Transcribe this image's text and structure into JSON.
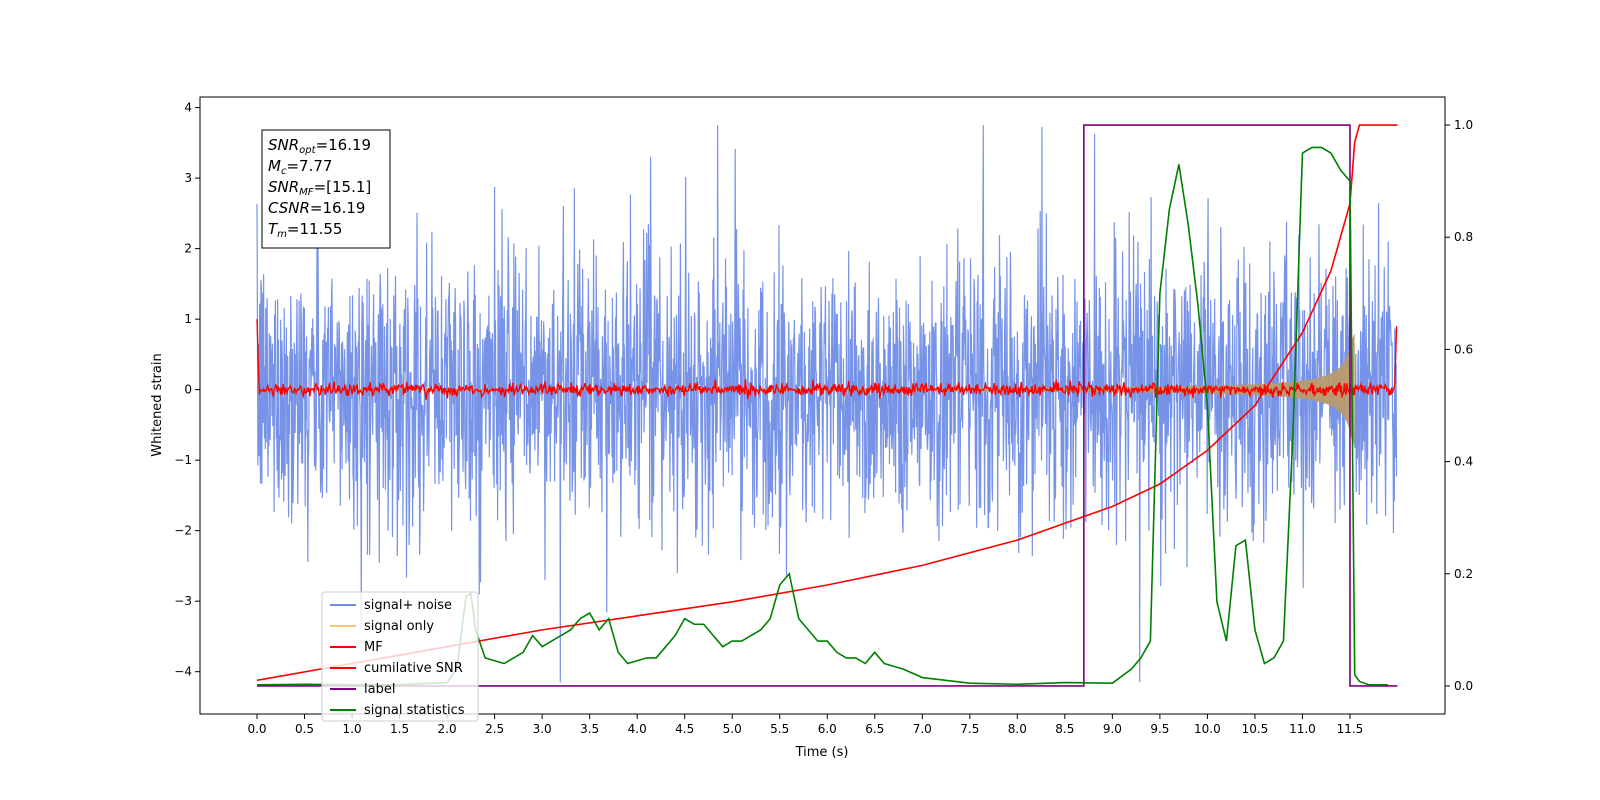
{
  "chart_data": {
    "type": "line",
    "title": "",
    "xlabel": "Time (s)",
    "ylabel_left": "Whitened strain",
    "ylabel_right": "",
    "xlim": [
      -0.6,
      12.5
    ],
    "ylim_left": [
      -4.6,
      4.15
    ],
    "ylim_right": [
      -0.05,
      1.05
    ],
    "x_ticks": [
      "0.0",
      "0.5",
      "1.0",
      "1.5",
      "2.0",
      "2.5",
      "3.0",
      "3.5",
      "4.0",
      "4.5",
      "5.0",
      "5.5",
      "6.0",
      "6.5",
      "7.0",
      "7.5",
      "8.0",
      "8.5",
      "9.0",
      "9.5",
      "10.0",
      "10.5",
      "11.0",
      "11.5"
    ],
    "y_ticks_left": [
      "4",
      "3",
      "2",
      "1",
      "0",
      "−1",
      "−2",
      "−3",
      "−4"
    ],
    "y_ticks_right": [
      "1.0",
      "0.8",
      "0.6",
      "0.4",
      "0.2",
      "0.0"
    ],
    "grid": false,
    "legend_position": "lower-left",
    "annotation": [
      {
        "sym": "SNR",
        "sub": "opt",
        "val": "=16.19"
      },
      {
        "sym": "M",
        "sub": "c",
        "val": "=7.77"
      },
      {
        "sym": "SNR",
        "sub": "MF",
        "val": "=[15.1]"
      },
      {
        "sym": "CSNR",
        "sub": "",
        "val": "=16.19"
      },
      {
        "sym": "T",
        "sub": "m",
        "val": "=11.55"
      }
    ],
    "series": [
      {
        "name": "signal+ noise",
        "axis": "left",
        "color": "#6f8de6",
        "description_range": [
          -2.5,
          2.5
        ],
        "x_range": [
          0,
          11.99
        ]
      },
      {
        "name": "signal only",
        "axis": "left",
        "color": "#f5c878",
        "chirp_end": 11.55
      },
      {
        "name": "MF",
        "axis": "left",
        "color": "#ff0000"
      },
      {
        "name": "cumilative SNR",
        "axis": "right",
        "color": "#ff0000",
        "x": [
          0,
          1,
          2,
          3,
          4,
          5,
          6,
          7,
          8,
          8.5,
          9,
          9.5,
          10,
          10.5,
          11,
          11.3,
          11.5,
          11.55,
          11.6,
          12
        ],
        "y": [
          0.01,
          0.04,
          0.07,
          0.1,
          0.125,
          0.15,
          0.18,
          0.215,
          0.26,
          0.29,
          0.32,
          0.36,
          0.42,
          0.5,
          0.63,
          0.74,
          0.86,
          0.97,
          1.0,
          1.0
        ]
      },
      {
        "name": "label",
        "axis": "right",
        "color": "#800080",
        "x": [
          0,
          8.7,
          8.7,
          11.5,
          11.5,
          12
        ],
        "y": [
          0,
          0,
          1,
          1,
          0,
          0
        ]
      },
      {
        "name": "signal statistics",
        "axis": "right",
        "color": "#008000",
        "x": [
          0,
          0.5,
          1,
          1.5,
          2,
          2.1,
          2.2,
          2.25,
          2.3,
          2.4,
          2.5,
          2.6,
          2.7,
          2.8,
          2.9,
          3.0,
          3.1,
          3.2,
          3.3,
          3.4,
          3.5,
          3.6,
          3.7,
          3.8,
          3.9,
          4.0,
          4.1,
          4.2,
          4.3,
          4.4,
          4.5,
          4.6,
          4.7,
          4.8,
          4.9,
          5.0,
          5.1,
          5.2,
          5.3,
          5.4,
          5.5,
          5.6,
          5.7,
          5.8,
          5.9,
          6.0,
          6.1,
          6.2,
          6.3,
          6.4,
          6.5,
          6.6,
          6.8,
          7.0,
          7.5,
          8.0,
          8.5,
          9.0,
          9.2,
          9.3,
          9.4,
          9.5,
          9.6,
          9.7,
          9.8,
          9.9,
          10.0,
          10.1,
          10.2,
          10.3,
          10.4,
          10.5,
          10.6,
          10.7,
          10.8,
          10.9,
          11.0,
          11.1,
          11.2,
          11.3,
          11.4,
          11.5,
          11.55,
          11.6,
          11.7,
          11.9
        ],
        "y": [
          0.002,
          0.003,
          0.002,
          0.002,
          0.006,
          0.03,
          0.16,
          0.165,
          0.1,
          0.05,
          0.045,
          0.04,
          0.05,
          0.06,
          0.09,
          0.07,
          0.08,
          0.09,
          0.1,
          0.12,
          0.13,
          0.1,
          0.12,
          0.06,
          0.04,
          0.045,
          0.05,
          0.05,
          0.07,
          0.09,
          0.12,
          0.11,
          0.11,
          0.09,
          0.07,
          0.08,
          0.08,
          0.09,
          0.1,
          0.12,
          0.18,
          0.2,
          0.12,
          0.1,
          0.08,
          0.08,
          0.06,
          0.05,
          0.05,
          0.04,
          0.06,
          0.04,
          0.03,
          0.015,
          0.005,
          0.003,
          0.006,
          0.005,
          0.03,
          0.05,
          0.08,
          0.7,
          0.85,
          0.93,
          0.82,
          0.68,
          0.5,
          0.15,
          0.08,
          0.25,
          0.26,
          0.1,
          0.04,
          0.05,
          0.08,
          0.45,
          0.95,
          0.96,
          0.96,
          0.95,
          0.92,
          0.9,
          0.02,
          0.008,
          0.002,
          0.002
        ]
      }
    ]
  }
}
